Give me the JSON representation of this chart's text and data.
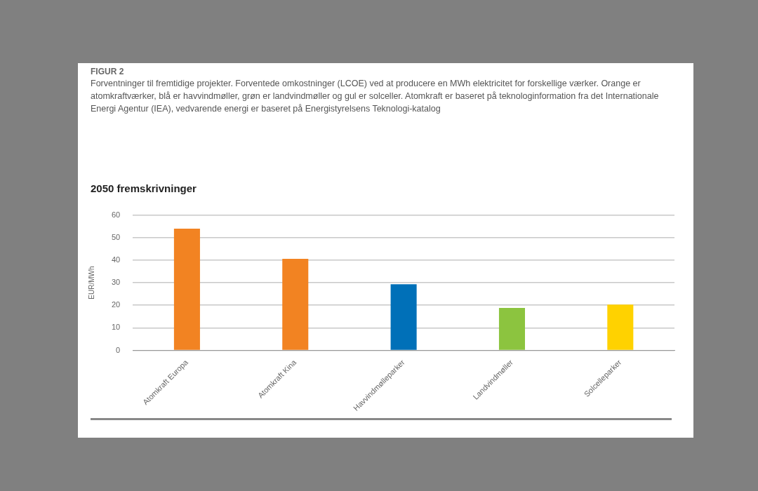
{
  "chart_data": {
    "type": "bar",
    "title": "2050 fremskrivninger",
    "annotations": [
      "FIGUR 2",
      "Forventninger til fremtidige projekter. Forventede omkostninger (LCOE) ved at producere en MWh elektricitet for forskellige værker. Orange er atomkraftværker, blå er havvindmøller, grøn er landvindmøller og gul er solceller. Atomkraft er baseret på teknologinformation fra det Internationale Energi Agentur (IEA), vedvarende energi er baseret på Energistyrelsens Teknologi-katalog"
    ],
    "ylabel": "EUR/MWh",
    "categories": [
      "Atomkraft Europa",
      "Atomkraft Kina",
      "Havvindmølleparker",
      "Landvindmøller",
      "Solcelleparker"
    ],
    "values": [
      54,
      40.6,
      29.3,
      18.8,
      20.3
    ],
    "colors": [
      "#f28322",
      "#f28322",
      "#0070b8",
      "#8cc43f",
      "#ffd200"
    ],
    "ylim": [
      0,
      60
    ],
    "yticks": [
      0,
      10,
      20,
      30,
      40,
      50,
      60
    ],
    "grid": "y",
    "legend": false
  }
}
